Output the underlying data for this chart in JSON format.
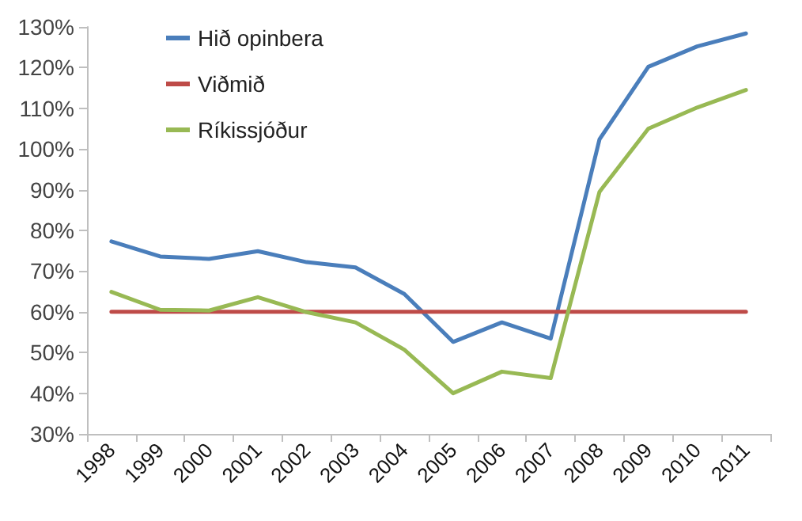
{
  "chart_data": {
    "type": "line",
    "categories": [
      "1998",
      "1999",
      "2000",
      "2001",
      "2002",
      "2003",
      "2004",
      "2005",
      "2006",
      "2007",
      "2008",
      "2009",
      "2010",
      "2011"
    ],
    "series": [
      {
        "name": "Hið opinbera",
        "color": "#4a7ebb",
        "values": [
          77.3,
          73.6,
          73,
          74.9,
          72.2,
          70.9,
          64.4,
          52.6,
          57.4,
          53.4,
          102.4,
          120.2,
          125.2,
          128.4
        ]
      },
      {
        "name": "Viðmið",
        "color": "#be4b48",
        "values": [
          60,
          60,
          60,
          60,
          60,
          60,
          60,
          60,
          60,
          60,
          60,
          60,
          60,
          60
        ]
      },
      {
        "name": "Ríkissjóður",
        "color": "#98b954",
        "values": [
          64.9,
          60.5,
          60.3,
          63.6,
          59.9,
          57.4,
          50.7,
          40,
          45.3,
          43.7,
          89.5,
          105,
          110.2,
          114.5
        ]
      }
    ],
    "ylim": [
      30,
      130
    ],
    "yticks": [
      {
        "value": 30,
        "label": "30%"
      },
      {
        "value": 40,
        "label": "40%"
      },
      {
        "value": 50,
        "label": "50%"
      },
      {
        "value": 60,
        "label": "60%"
      },
      {
        "value": 70,
        "label": "70%"
      },
      {
        "value": 80,
        "label": "80%"
      },
      {
        "value": 90,
        "label": "90%"
      },
      {
        "value": 100,
        "label": "100%"
      },
      {
        "value": 110,
        "label": "110%"
      },
      {
        "value": 120,
        "label": "120%"
      },
      {
        "value": 130,
        "label": "130%"
      }
    ],
    "legend": "top left",
    "grid": false,
    "marker": "none",
    "line_style": "solid"
  }
}
